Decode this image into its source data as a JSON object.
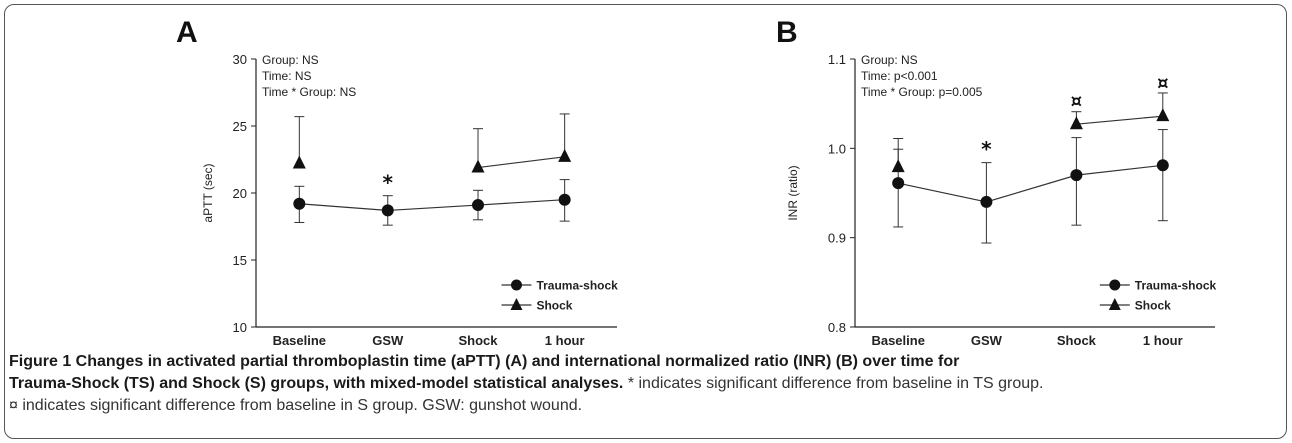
{
  "chart_data": [
    {
      "type": "line",
      "panel_label": "A",
      "ylabel": "aPTT  (sec)",
      "ylim": [
        10,
        30
      ],
      "yticks": [
        10,
        15,
        20,
        25,
        30
      ],
      "categories": [
        "Baseline",
        "GSW",
        "Shock",
        "1 hour"
      ],
      "stats": [
        "Group: NS",
        "Time: NS",
        "Time * Group: NS"
      ],
      "series": [
        {
          "name": "Trauma-shock",
          "marker": "circle",
          "start_index": 0,
          "values": [
            19.2,
            18.7,
            19.1,
            19.5
          ],
          "err_low": [
            17.8,
            17.6,
            18.0,
            17.9
          ],
          "err_high": [
            20.5,
            19.8,
            20.2,
            21.0
          ]
        },
        {
          "name": "Shock",
          "marker": "triangle",
          "start_index": 0,
          "values": [
            22.2,
            null,
            21.9,
            22.7
          ],
          "err_low": [
            null,
            null,
            null,
            null
          ],
          "err_high": [
            25.7,
            null,
            24.8,
            25.9
          ]
        }
      ],
      "annotations": [
        {
          "category_index": 1,
          "symbol": "*",
          "y": 20.7
        }
      ],
      "legend_position": "bottom-right"
    },
    {
      "type": "line",
      "panel_label": "B",
      "ylabel": "INR (ratio)",
      "ylim": [
        0.8,
        1.1
      ],
      "yticks": [
        0.8,
        0.9,
        1.0,
        1.1
      ],
      "ytick_labels": [
        "0.8",
        "0.9",
        "1.0",
        "1.1"
      ],
      "categories": [
        "Baseline",
        "GSW",
        "Shock",
        "1 hour"
      ],
      "stats": [
        "Group: NS",
        "Time: p<0.001",
        "Time * Group: p=0.005"
      ],
      "series": [
        {
          "name": "Trauma-shock",
          "marker": "circle",
          "start_index": 0,
          "values": [
            0.961,
            0.94,
            0.97,
            0.981
          ],
          "err_low": [
            0.912,
            0.894,
            0.914,
            0.919
          ],
          "err_high": [
            0.999,
            0.984,
            1.012,
            1.021
          ]
        },
        {
          "name": "Shock",
          "marker": "triangle",
          "start_index": 0,
          "values": [
            0.979,
            null,
            1.027,
            1.036
          ],
          "err_low": [
            null,
            null,
            null,
            null
          ],
          "err_high": [
            1.011,
            null,
            1.041,
            1.062
          ]
        }
      ],
      "annotations": [
        {
          "category_index": 1,
          "symbol": "*",
          "y": 0.998
        },
        {
          "category_index": 2,
          "symbol": "¤",
          "y": 1.053
        },
        {
          "category_index": 3,
          "symbol": "¤",
          "y": 1.073
        }
      ],
      "legend_position": "bottom-right"
    }
  ],
  "caption": {
    "bold": "Figure 1 Changes in activated partial thromboplastin time (aPTT) (A) and international normalized ratio (INR) (B) over time for Trauma-Shock (TS) and Shock (S) groups, with mixed-model statistical analyses.",
    "rest_line1": "* indicates significant difference from baseline in TS group.",
    "rest_line2": "¤ indicates significant difference from baseline in S group. GSW: gunshot wound."
  }
}
